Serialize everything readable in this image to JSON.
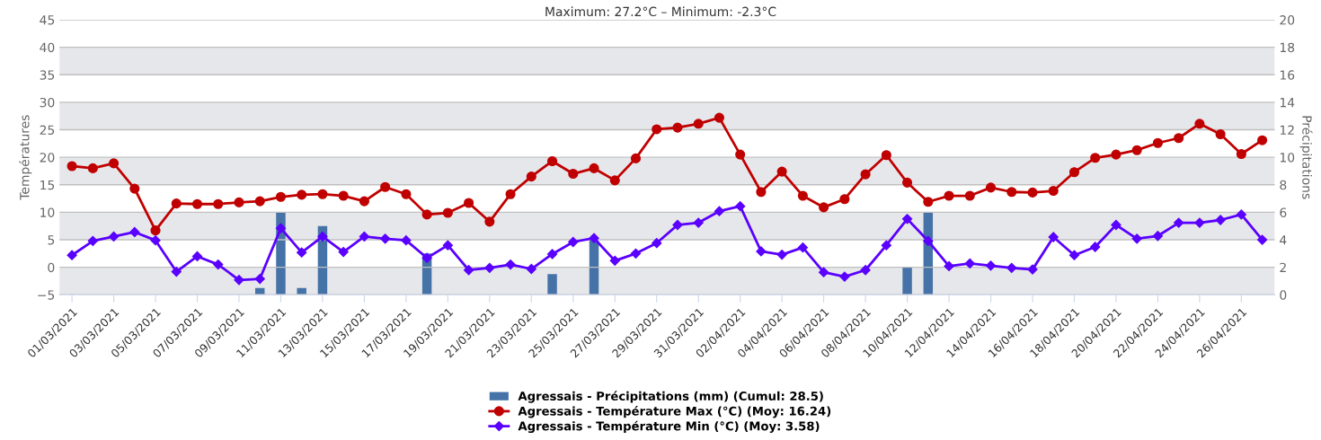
{
  "chart_data": {
    "type": "line",
    "title": "Maximum: 27.2°C – Minimum: -2.3°C",
    "ylabel": "Températures",
    "y2label": "Précipitations",
    "categories": [
      "01/03/2021",
      null,
      "03/03/2021",
      null,
      "05/03/2021",
      null,
      "07/03/2021",
      null,
      "09/03/2021",
      null,
      "11/03/2021",
      null,
      "13/03/2021",
      null,
      "15/03/2021",
      null,
      "17/03/2021",
      null,
      "19/03/2021",
      null,
      "21/03/2021",
      null,
      "23/03/2021",
      null,
      "25/03/2021",
      null,
      "27/03/2021",
      null,
      "29/03/2021",
      null,
      "31/03/2021",
      null,
      "02/04/2021",
      null,
      "04/04/2021",
      null,
      "06/04/2021",
      null,
      "08/04/2021",
      null,
      "10/04/2021",
      null,
      "12/04/2021",
      null,
      "14/04/2021",
      null,
      "16/04/2021",
      null,
      "18/04/2021",
      null,
      "20/04/2021",
      null,
      "22/04/2021",
      null,
      "24/04/2021",
      null,
      "26/04/2021",
      null
    ],
    "series": [
      {
        "name": "Agressais - Précipitations (mm) (Cumul: 28.5)",
        "type": "bar",
        "axis": "y2",
        "color": "#4572a7",
        "values": [
          0,
          0,
          0,
          0,
          0,
          0,
          0,
          0,
          0,
          0.5,
          6,
          0.5,
          5,
          0,
          0,
          0,
          0,
          3,
          0,
          0,
          0,
          0,
          0,
          1.5,
          0,
          4,
          0,
          0,
          0,
          0,
          0,
          0,
          0,
          0,
          0,
          0,
          0,
          0,
          0,
          0,
          2,
          6,
          0,
          0,
          0,
          0,
          0,
          0,
          0,
          0,
          0,
          0,
          0,
          0,
          0,
          0,
          0,
          0
        ]
      },
      {
        "name": "Agressais - Température Max (°C) (Moy: 16.24)",
        "marker": "circle",
        "color": "#c00000",
        "values": [
          18.4,
          18.0,
          18.9,
          14.3,
          6.7,
          11.6,
          11.5,
          11.5,
          11.8,
          12.0,
          12.8,
          13.2,
          13.3,
          13.0,
          12.0,
          14.6,
          13.3,
          9.6,
          9.9,
          11.7,
          8.3,
          13.3,
          16.5,
          19.3,
          17.0,
          18.0,
          15.8,
          19.8,
          25.1,
          25.4,
          26.1,
          27.2,
          20.5,
          13.7,
          17.4,
          13.0,
          10.9,
          12.4,
          16.9,
          20.4,
          15.4,
          11.9,
          13.0,
          13.0,
          14.5,
          13.7,
          13.6,
          13.9,
          17.3,
          19.9,
          20.5,
          21.3,
          22.6,
          23.5,
          26.1,
          24.2,
          20.6,
          23.1
        ]
      },
      {
        "name": "Agressais - Température Min (°C) (Moy: 3.58)",
        "marker": "diamond",
        "color": "#5a00ff",
        "values": [
          2.2,
          4.8,
          5.6,
          6.4,
          4.9,
          -0.8,
          2.0,
          0.5,
          -2.3,
          -2.1,
          7.1,
          2.7,
          5.6,
          2.8,
          5.6,
          5.2,
          4.9,
          1.7,
          4.0,
          -0.5,
          -0.1,
          0.5,
          -0.3,
          2.4,
          4.6,
          5.3,
          1.2,
          2.5,
          4.4,
          7.7,
          8.1,
          10.2,
          11.1,
          2.9,
          2.3,
          3.6,
          -0.9,
          -1.7,
          -0.5,
          4.0,
          8.8,
          4.8,
          0.2,
          0.7,
          0.3,
          -0.1,
          -0.4,
          5.5,
          2.2,
          3.7,
          7.7,
          5.2,
          5.7,
          8.1,
          8.1,
          8.6,
          9.6,
          5.0
        ]
      }
    ],
    "ylim": [
      -5,
      45
    ],
    "yticks": [
      -5,
      0,
      5,
      10,
      15,
      20,
      25,
      30,
      35,
      40,
      45
    ],
    "y2lim": [
      0,
      20
    ],
    "y2ticks": [
      0,
      2,
      4,
      6,
      8,
      10,
      12,
      14,
      16,
      18,
      20
    ],
    "grid": "y",
    "legend": "bottom"
  }
}
